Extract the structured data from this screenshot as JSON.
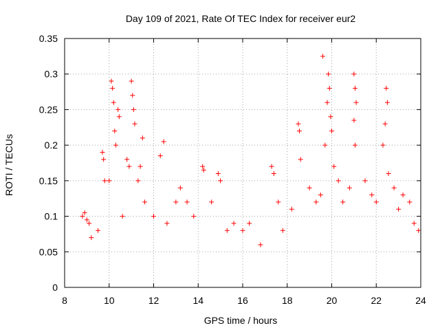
{
  "chart_data": {
    "type": "scatter",
    "title": "Day 109 of 2021, Rate Of TEC Index for receiver eur2",
    "xlabel": "GPS time / hours",
    "ylabel": "ROTI / TECUs",
    "xlim": [
      8,
      24
    ],
    "ylim": [
      0,
      0.35
    ],
    "x_ticks": [
      8,
      10,
      12,
      14,
      16,
      18,
      20,
      22,
      24
    ],
    "y_ticks": [
      0,
      0.05,
      0.1,
      0.15,
      0.2,
      0.25,
      0.3,
      0.35
    ],
    "x_tick_labels": [
      "8",
      "10",
      "12",
      "14",
      "16",
      "18",
      "20",
      "22",
      "24"
    ],
    "y_tick_labels": [
      "0",
      "0.05",
      "0.1",
      "0.15",
      "0.2",
      "0.25",
      "0.3",
      "0.35"
    ],
    "grid": true,
    "marker": "+",
    "marker_color": "#ff0000",
    "series": [
      {
        "points": [
          [
            8.8,
            0.1
          ],
          [
            8.9,
            0.105
          ],
          [
            9.0,
            0.095
          ],
          [
            9.1,
            0.09
          ],
          [
            9.2,
            0.07
          ],
          [
            9.5,
            0.08
          ],
          [
            9.7,
            0.19
          ],
          [
            9.75,
            0.18
          ],
          [
            9.8,
            0.15
          ],
          [
            10.0,
            0.15
          ],
          [
            10.1,
            0.29
          ],
          [
            10.15,
            0.28
          ],
          [
            10.2,
            0.26
          ],
          [
            10.25,
            0.22
          ],
          [
            10.3,
            0.2
          ],
          [
            10.4,
            0.25
          ],
          [
            10.45,
            0.24
          ],
          [
            10.6,
            0.1
          ],
          [
            10.8,
            0.18
          ],
          [
            10.9,
            0.17
          ],
          [
            11.0,
            0.29
          ],
          [
            11.05,
            0.27
          ],
          [
            11.1,
            0.25
          ],
          [
            11.15,
            0.23
          ],
          [
            11.3,
            0.15
          ],
          [
            11.4,
            0.17
          ],
          [
            11.5,
            0.21
          ],
          [
            11.6,
            0.12
          ],
          [
            12.0,
            0.1
          ],
          [
            12.3,
            0.185
          ],
          [
            12.45,
            0.205
          ],
          [
            12.6,
            0.09
          ],
          [
            13.0,
            0.12
          ],
          [
            13.2,
            0.14
          ],
          [
            13.5,
            0.12
          ],
          [
            13.8,
            0.1
          ],
          [
            14.2,
            0.17
          ],
          [
            14.25,
            0.165
          ],
          [
            14.6,
            0.12
          ],
          [
            14.9,
            0.16
          ],
          [
            15.0,
            0.15
          ],
          [
            15.3,
            0.08
          ],
          [
            15.6,
            0.09
          ],
          [
            16.0,
            0.08
          ],
          [
            16.3,
            0.09
          ],
          [
            16.8,
            0.06
          ],
          [
            17.3,
            0.17
          ],
          [
            17.4,
            0.16
          ],
          [
            17.6,
            0.12
          ],
          [
            17.8,
            0.08
          ],
          [
            18.2,
            0.11
          ],
          [
            18.5,
            0.23
          ],
          [
            18.55,
            0.22
          ],
          [
            18.6,
            0.18
          ],
          [
            19.0,
            0.14
          ],
          [
            19.3,
            0.12
          ],
          [
            19.5,
            0.13
          ],
          [
            19.6,
            0.325
          ],
          [
            19.7,
            0.2
          ],
          [
            19.8,
            0.26
          ],
          [
            19.85,
            0.3
          ],
          [
            19.9,
            0.28
          ],
          [
            19.95,
            0.24
          ],
          [
            20.0,
            0.22
          ],
          [
            20.1,
            0.17
          ],
          [
            20.3,
            0.15
          ],
          [
            20.5,
            0.12
          ],
          [
            20.8,
            0.14
          ],
          [
            21.0,
            0.3
          ],
          [
            21.05,
            0.28
          ],
          [
            21.1,
            0.26
          ],
          [
            21.0,
            0.235
          ],
          [
            21.05,
            0.2
          ],
          [
            21.5,
            0.15
          ],
          [
            21.8,
            0.13
          ],
          [
            22.0,
            0.12
          ],
          [
            22.3,
            0.2
          ],
          [
            22.4,
            0.23
          ],
          [
            22.45,
            0.28
          ],
          [
            22.5,
            0.26
          ],
          [
            22.55,
            0.16
          ],
          [
            22.8,
            0.14
          ],
          [
            23.0,
            0.11
          ],
          [
            23.2,
            0.13
          ],
          [
            23.5,
            0.12
          ],
          [
            23.7,
            0.09
          ],
          [
            23.9,
            0.08
          ]
        ]
      }
    ]
  }
}
